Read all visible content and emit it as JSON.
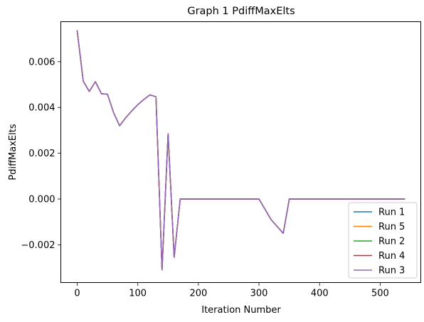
{
  "chart_data": {
    "type": "line",
    "title": "Graph 1 PdiffMaxElts",
    "xlabel": "Iteration Number",
    "ylabel": "PdiffMaxElts",
    "xlim": [
      -27,
      567
    ],
    "ylim": [
      -0.00365,
      0.00775
    ],
    "xticks": [
      0,
      100,
      200,
      300,
      400,
      500
    ],
    "yticks": [
      -0.002,
      0.0,
      0.002,
      0.004,
      0.006
    ],
    "ytick_labels": [
      "−0.002",
      "0.000",
      "0.002",
      "0.004",
      "0.006"
    ],
    "grid": false,
    "legend_position": "lower right",
    "x": [
      0,
      10,
      20,
      30,
      40,
      50,
      60,
      70,
      80,
      90,
      100,
      110,
      120,
      130,
      140,
      150,
      160,
      170,
      180,
      190,
      200,
      210,
      220,
      230,
      240,
      250,
      260,
      270,
      280,
      290,
      300,
      310,
      320,
      330,
      340,
      350,
      360,
      370,
      380,
      390,
      400,
      410,
      420,
      430,
      440,
      450,
      460,
      470,
      480,
      490,
      500,
      510,
      520,
      530,
      540
    ],
    "series": [
      {
        "name": "Run 1",
        "color": "#1f77b4",
        "values": [
          0.00735,
          0.00515,
          0.0047,
          0.00513,
          0.0046,
          0.00458,
          0.00378,
          0.0032,
          0.00355,
          0.00385,
          0.00412,
          0.00435,
          0.00455,
          0.00447,
          -0.0031,
          0.00285,
          -0.00255,
          0.0,
          0.0,
          0.0,
          0.0,
          0.0,
          0.0,
          0.0,
          0.0,
          0.0,
          0.0,
          0.0,
          0.0,
          0.0,
          0.0,
          -0.00045,
          -0.0009,
          -0.0012,
          -0.0015,
          0.0,
          0.0,
          0.0,
          0.0,
          0.0,
          0.0,
          0.0,
          0.0,
          0.0,
          0.0,
          0.0,
          0.0,
          0.0,
          0.0,
          0.0,
          0.0,
          0.0,
          0.0,
          0.0,
          0.0
        ]
      },
      {
        "name": "Run 5",
        "color": "#ff7f0e",
        "values": [
          0.00735,
          0.00515,
          0.0047,
          0.00513,
          0.0046,
          0.00458,
          0.00378,
          0.0032,
          0.00355,
          0.00385,
          0.00412,
          0.00435,
          0.00455,
          0.00447,
          -0.0031,
          0.00285,
          -0.00255,
          0.0,
          0.0,
          0.0,
          0.0,
          0.0,
          0.0,
          0.0,
          0.0,
          0.0,
          0.0,
          0.0,
          0.0,
          0.0,
          0.0,
          -0.00045,
          -0.0009,
          -0.0012,
          -0.0015,
          0.0,
          0.0,
          0.0,
          0.0,
          0.0,
          0.0,
          0.0,
          0.0,
          0.0,
          0.0,
          0.0,
          0.0,
          0.0,
          0.0,
          0.0,
          0.0,
          0.0,
          0.0,
          0.0,
          0.0
        ]
      },
      {
        "name": "Run 2",
        "color": "#2ca02c",
        "values": [
          0.00735,
          0.00515,
          0.0047,
          0.00513,
          0.0046,
          0.00458,
          0.00378,
          0.0032,
          0.00355,
          0.00385,
          0.00412,
          0.00435,
          0.00455,
          0.00447,
          -0.0031,
          0.00285,
          -0.00255,
          0.0,
          0.0,
          0.0,
          0.0,
          0.0,
          0.0,
          0.0,
          0.0,
          0.0,
          0.0,
          0.0,
          0.0,
          0.0,
          0.0,
          -0.00045,
          -0.0009,
          -0.0012,
          -0.0015,
          0.0,
          0.0,
          0.0,
          0.0,
          0.0,
          0.0,
          0.0,
          0.0,
          0.0,
          0.0,
          0.0,
          0.0,
          0.0,
          0.0,
          0.0,
          0.0,
          0.0,
          0.0,
          0.0,
          0.0
        ]
      },
      {
        "name": "Run 4",
        "color": "#d62728",
        "values": [
          0.00735,
          0.00515,
          0.0047,
          0.00513,
          0.0046,
          0.00458,
          0.00378,
          0.0032,
          0.00355,
          0.00385,
          0.00412,
          0.00435,
          0.00455,
          0.00447,
          -0.0031,
          0.00285,
          -0.00255,
          0.0,
          0.0,
          0.0,
          0.0,
          0.0,
          0.0,
          0.0,
          0.0,
          0.0,
          0.0,
          0.0,
          0.0,
          0.0,
          0.0,
          -0.00045,
          -0.0009,
          -0.0012,
          -0.0015,
          0.0,
          0.0,
          0.0,
          0.0,
          0.0,
          0.0,
          0.0,
          0.0,
          0.0,
          0.0,
          0.0,
          0.0,
          0.0,
          0.0,
          0.0,
          0.0,
          0.0,
          0.0,
          0.0,
          0.0
        ]
      },
      {
        "name": "Run 3",
        "color": "#9467bd",
        "values": [
          0.00735,
          0.00515,
          0.0047,
          0.00513,
          0.0046,
          0.00458,
          0.00378,
          0.0032,
          0.00355,
          0.00385,
          0.00412,
          0.00435,
          0.00455,
          0.00447,
          -0.0031,
          0.00285,
          -0.00255,
          0.0,
          0.0,
          0.0,
          0.0,
          0.0,
          0.0,
          0.0,
          0.0,
          0.0,
          0.0,
          0.0,
          0.0,
          0.0,
          0.0,
          -0.00045,
          -0.0009,
          -0.0012,
          -0.0015,
          0.0,
          0.0,
          0.0,
          0.0,
          0.0,
          0.0,
          0.0,
          0.0,
          0.0,
          0.0,
          0.0,
          0.0,
          0.0,
          0.0,
          0.0,
          0.0,
          0.0,
          0.0,
          0.0,
          0.0
        ]
      }
    ]
  }
}
